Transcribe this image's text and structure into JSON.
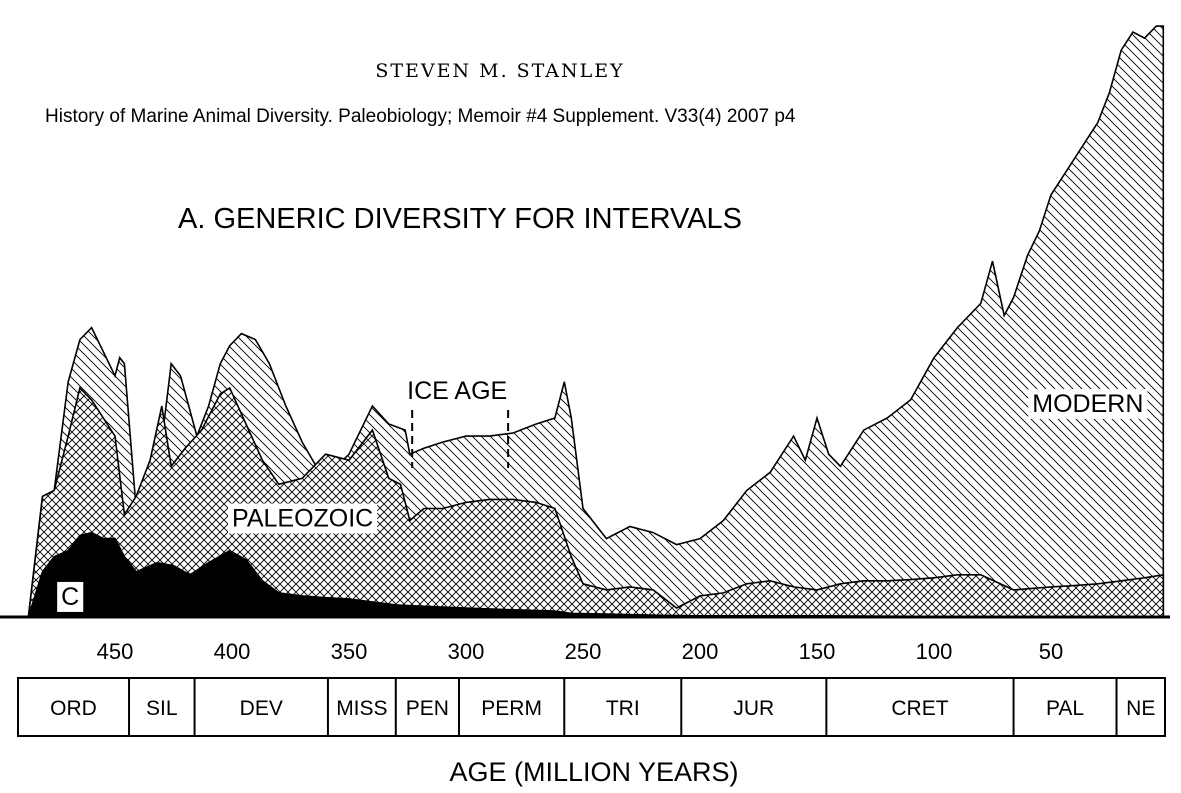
{
  "page": {
    "author": "STEVEN M. STANLEY",
    "citation": "History of Marine Animal Diversity. Paleobiology; Memoir #4 Supplement. V33(4) 2007 p4"
  },
  "colors": {
    "ink": "#000000",
    "paper": "#ffffff"
  },
  "chart_data": {
    "type": "area",
    "title": "A. GENERIC DIVERSITY FOR INTERVALS",
    "xlabel": "AGE (MILLION YEARS)",
    "ylabel": "",
    "x_reversed": true,
    "xlim": [
      490,
      0
    ],
    "x_ticks": [
      450,
      400,
      350,
      300,
      250,
      200,
      150,
      100,
      50
    ],
    "ylim": [
      0,
      1000
    ],
    "grid": false,
    "legend": "none",
    "annotations": {
      "ice_age": {
        "label": "ICE AGE",
        "start": 323,
        "end": 282
      }
    },
    "periods": [
      {
        "label": "ORD",
        "start": 488,
        "end": 444
      },
      {
        "label": "SIL",
        "start": 444,
        "end": 416
      },
      {
        "label": "DEV",
        "start": 416,
        "end": 359
      },
      {
        "label": "MISS",
        "start": 359,
        "end": 330
      },
      {
        "label": "PEN",
        "start": 330,
        "end": 303
      },
      {
        "label": "PERM",
        "start": 303,
        "end": 258
      },
      {
        "label": "TRI",
        "start": 258,
        "end": 208
      },
      {
        "label": "JUR",
        "start": 208,
        "end": 146
      },
      {
        "label": "CRET",
        "start": 146,
        "end": 66
      },
      {
        "label": "PAL",
        "start": 66,
        "end": 22
      },
      {
        "label": "NE",
        "start": 22,
        "end": 0
      }
    ],
    "series": [
      {
        "name": "C",
        "label": "C",
        "label_at": [
          473,
          20
        ],
        "fill": "solid",
        "x": [
          487,
          481,
          476,
          470,
          465,
          460,
          455,
          450,
          446,
          441,
          432,
          425,
          418,
          410,
          401,
          394,
          387,
          380,
          370,
          360,
          350,
          340,
          330,
          320,
          300,
          280,
          262,
          255,
          240,
          220,
          200,
          150,
          100,
          50,
          2
        ],
        "top": [
          0,
          75,
          100,
          110,
          135,
          140,
          130,
          130,
          100,
          75,
          90,
          85,
          70,
          90,
          110,
          95,
          60,
          40,
          35,
          32,
          30,
          25,
          20,
          18,
          15,
          12,
          10,
          6,
          5,
          3,
          2,
          2,
          1,
          1,
          1
        ]
      },
      {
        "name": "PALEOZOIC",
        "label": "PALEOZOIC",
        "label_at": [
          400,
          150
        ],
        "fill": "crosshatch",
        "x": [
          487,
          481,
          476,
          470,
          465,
          460,
          455,
          450,
          446,
          441,
          435,
          430,
          426,
          420,
          413,
          405,
          401,
          394,
          387,
          380,
          370,
          360,
          350,
          340,
          333,
          328,
          324,
          318,
          310,
          300,
          290,
          280,
          270,
          262,
          255,
          250,
          240,
          230,
          220,
          210,
          200,
          190,
          180,
          170,
          160,
          150,
          140,
          130,
          120,
          110,
          100,
          90,
          80,
          66,
          50,
          40,
          30,
          20,
          10,
          2
        ],
        "top": [
          0,
          200,
          210,
          300,
          380,
          360,
          330,
          300,
          170,
          200,
          260,
          350,
          250,
          280,
          310,
          370,
          380,
          320,
          260,
          220,
          230,
          270,
          260,
          310,
          230,
          220,
          160,
          180,
          180,
          190,
          195,
          195,
          190,
          180,
          100,
          55,
          45,
          50,
          45,
          15,
          35,
          40,
          55,
          60,
          50,
          45,
          55,
          60,
          60,
          62,
          65,
          70,
          70,
          45,
          50,
          52,
          55,
          60,
          65,
          70
        ]
      },
      {
        "name": "MODERN",
        "label": "MODERN",
        "label_at": [
          58,
          340
        ],
        "fill": "diagonal",
        "x": [
          487,
          481,
          476,
          470,
          465,
          460,
          455,
          450,
          448,
          446,
          441,
          437,
          431,
          426,
          422,
          415,
          410,
          405,
          401,
          396,
          390,
          384,
          377,
          370,
          364,
          358,
          350,
          340,
          333,
          326,
          324,
          318,
          310,
          300,
          290,
          280,
          270,
          262,
          258,
          255,
          250,
          240,
          230,
          220,
          210,
          200,
          190,
          180,
          170,
          160,
          155,
          150,
          145,
          140,
          130,
          120,
          110,
          100,
          90,
          80,
          75,
          70,
          66,
          60,
          55,
          50,
          45,
          40,
          35,
          30,
          25,
          20,
          15,
          10,
          5,
          2
        ],
        "top": [
          0,
          200,
          210,
          390,
          460,
          480,
          440,
          400,
          430,
          420,
          180,
          200,
          260,
          420,
          400,
          300,
          350,
          420,
          450,
          470,
          460,
          420,
          350,
          290,
          250,
          240,
          270,
          350,
          320,
          310,
          270,
          280,
          290,
          300,
          300,
          305,
          320,
          330,
          390,
          330,
          180,
          130,
          150,
          140,
          120,
          130,
          160,
          210,
          240,
          300,
          260,
          330,
          270,
          250,
          310,
          330,
          360,
          430,
          480,
          520,
          590,
          500,
          530,
          600,
          640,
          700,
          730,
          760,
          790,
          820,
          870,
          940,
          970,
          960,
          980,
          980
        ]
      }
    ]
  }
}
